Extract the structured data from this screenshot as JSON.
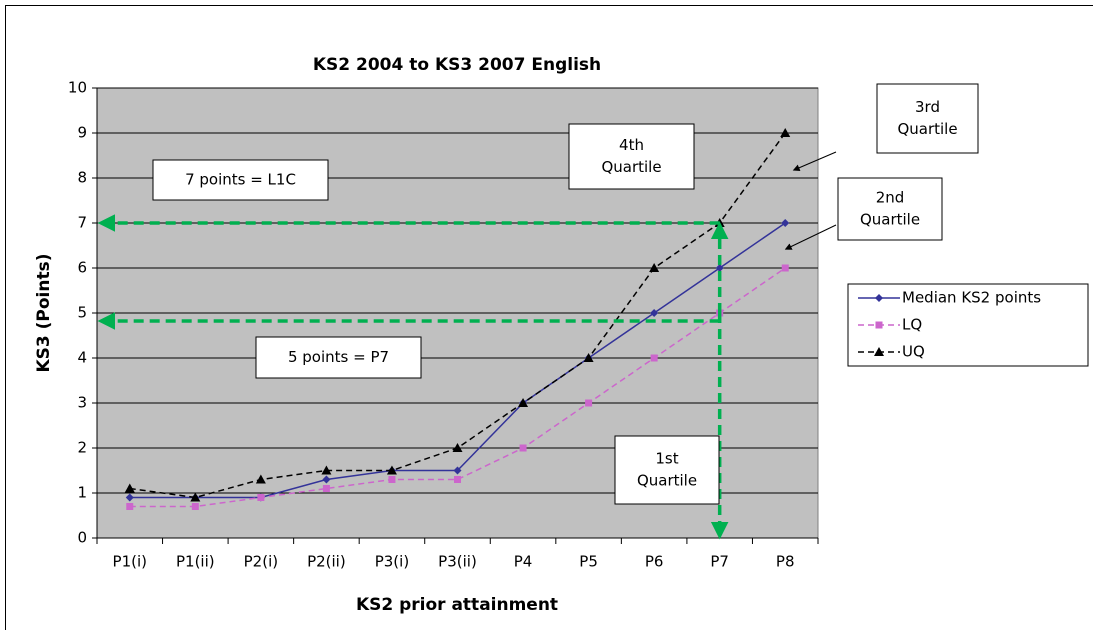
{
  "chart_data": {
    "type": "line",
    "title": "KS2 2004 to KS3 2007 English",
    "x_label": "KS2 prior attainment",
    "y_label": "KS3 (Points)",
    "categories": [
      "P1(i)",
      "P1(ii)",
      "P2(i)",
      "P2(ii)",
      "P3(i)",
      "P3(ii)",
      "P4",
      "P5",
      "P6",
      "P7",
      "P8"
    ],
    "series": [
      {
        "name": "Median KS2 points",
        "color": "#333399",
        "marker": "diamond",
        "dashed": false,
        "values": [
          0.9,
          0.9,
          0.9,
          1.3,
          1.5,
          1.5,
          3,
          4,
          5,
          6,
          7
        ]
      },
      {
        "name": "LQ",
        "color": "#cc66cc",
        "marker": "square",
        "dashed": true,
        "values": [
          0.7,
          0.7,
          0.9,
          1.1,
          1.3,
          1.3,
          2,
          3,
          4,
          5,
          6
        ]
      },
      {
        "name": "UQ",
        "color": "#000000",
        "marker": "triangle",
        "dashed": true,
        "values": [
          1.1,
          0.9,
          1.3,
          1.5,
          1.5,
          2,
          3,
          4,
          6,
          7,
          9
        ]
      }
    ],
    "ylim": [
      0,
      10
    ],
    "yticks": [
      0,
      1,
      2,
      3,
      4,
      5,
      6,
      7,
      8,
      9,
      10
    ],
    "grid": true,
    "annotations": [
      {
        "lines": [
          "7 points = L1C"
        ]
      },
      {
        "lines": [
          "5 points = P7"
        ]
      },
      {
        "lines": [
          "4th",
          "Quartile"
        ]
      },
      {
        "lines": [
          "3rd",
          "Quartile"
        ]
      },
      {
        "lines": [
          "2nd",
          "Quartile"
        ]
      },
      {
        "lines": [
          "1st",
          "Quartile"
        ]
      }
    ]
  }
}
